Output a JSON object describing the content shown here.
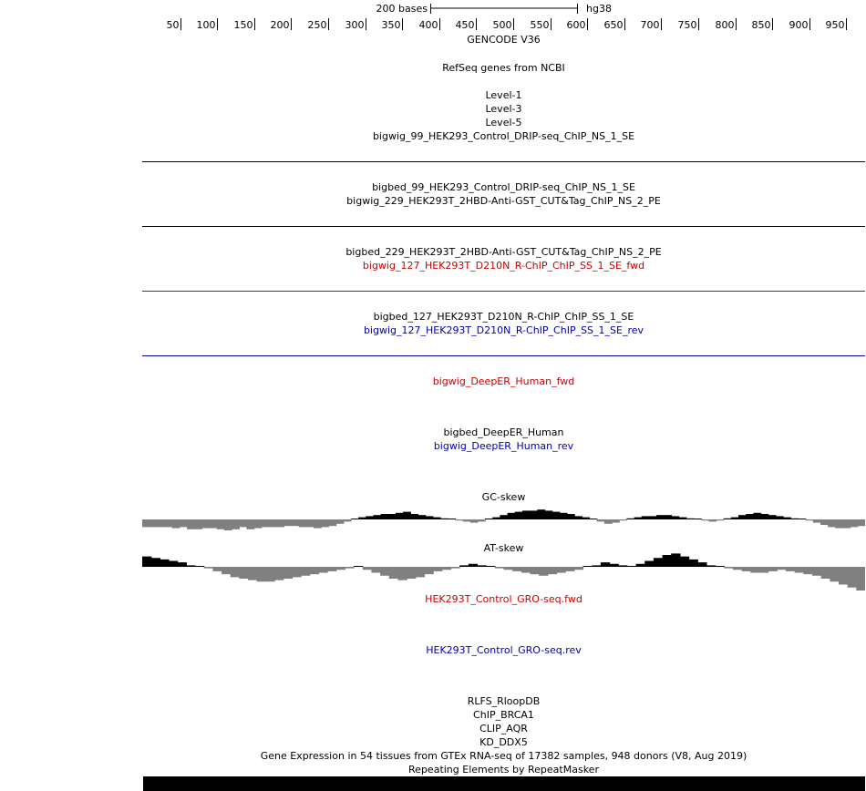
{
  "ruler": {
    "scale_label": "200 bases",
    "assembly": "hg38",
    "ticks": [
      "50",
      "100",
      "150",
      "200",
      "250",
      "300",
      "350",
      "400",
      "450",
      "500",
      "550",
      "600",
      "650",
      "700",
      "750",
      "800",
      "850",
      "900",
      "950"
    ]
  },
  "tracks": {
    "gencode": "GENCODE V36",
    "refseq": "RefSeq genes from NCBI",
    "level1": "Level-1",
    "level3": "Level-3",
    "level5": "Level-5",
    "bigwig_99": "bigwig_99_HEK293_Control_DRIP-seq_ChIP_NS_1_SE",
    "bigbed_99": "bigbed_99_HEK293_Control_DRIP-seq_ChIP_NS_1_SE",
    "bigwig_229": "bigwig_229_HEK293T_2HBD-Anti-GST_CUT&Tag_ChIP_NS_2_PE",
    "bigbed_229": "bigbed_229_HEK293T_2HBD-Anti-GST_CUT&Tag_ChIP_NS_2_PE",
    "bigwig_127_fwd": "bigwig_127_HEK293T_D210N_R-ChIP_ChIP_SS_1_SE_fwd",
    "bigbed_127": "bigbed_127_HEK293T_D210N_R-ChIP_ChIP_SS_1_SE",
    "bigwig_127_rev": "bigwig_127_HEK293T_D210N_R-ChIP_ChIP_SS_1_SE_rev",
    "deeper_fwd": "bigwig_DeepER_Human_fwd",
    "deeper_bed": "bigbed_DeepER_Human",
    "deeper_rev": "bigwig_DeepER_Human_rev",
    "gc_skew": "GC-skew",
    "at_skew": "AT-skew",
    "gro_fwd": "HEK293T_Control_GRO-seq.fwd",
    "gro_rev": "HEK293T_Control_GRO-seq.rev",
    "rlfs": "RLFS_RloopDB",
    "chip_brca1": "ChIP_BRCA1",
    "clip_aqr": "CLIP_AQR",
    "kd_ddx5": "KD_DDX5",
    "gtex": "Gene Expression in 54 tissues from GTEx RNA-seq of 17382 samples, 948 donors (V8, Aug 2019)",
    "repeatmasker": "Repeating Elements by RepeatMasker"
  },
  "colors": {
    "forward_strand": "#cc0000",
    "reverse_strand": "#0000aa",
    "positive_signal": "#000000",
    "negative_signal": "#808080"
  },
  "skew": {
    "gc": [
      -7,
      -7,
      -7,
      -7,
      -8,
      -7,
      -9,
      -9,
      -8,
      -8,
      -9,
      -10,
      -9,
      -7,
      -9,
      -8,
      -7,
      -7,
      -7,
      -6,
      -6,
      -7,
      -7,
      -8,
      -7,
      -6,
      -4,
      -2,
      0,
      2,
      3,
      4,
      5,
      5,
      6,
      7,
      5,
      4,
      3,
      2,
      1,
      0,
      -1,
      -2,
      -3,
      -2,
      0,
      2,
      4,
      6,
      7,
      8,
      8,
      9,
      8,
      7,
      6,
      5,
      3,
      2,
      0,
      -2,
      -4,
      -3,
      -1,
      1,
      2,
      3,
      3,
      4,
      4,
      3,
      2,
      1,
      0,
      -1,
      -2,
      -1,
      1,
      2,
      4,
      5,
      6,
      5,
      4,
      3,
      2,
      1,
      0,
      -1,
      -3,
      -5,
      -7,
      -8,
      -8,
      -7,
      -6
    ],
    "at": [
      7,
      6,
      5,
      4,
      3,
      1,
      0,
      -1,
      -3,
      -5,
      -7,
      -8,
      -9,
      -10,
      -10,
      -9,
      -8,
      -7,
      -6,
      -5,
      -4,
      -3,
      -2,
      -1,
      0,
      -2,
      -4,
      -6,
      -8,
      -9,
      -8,
      -7,
      -5,
      -3,
      -2,
      -1,
      1,
      2,
      1,
      0,
      -1,
      -2,
      -3,
      -4,
      -5,
      -6,
      -5,
      -4,
      -3,
      -2,
      0,
      1,
      3,
      2,
      1,
      0,
      2,
      4,
      6,
      8,
      9,
      7,
      5,
      3,
      1,
      0,
      -1,
      -2,
      -3,
      -4,
      -4,
      -3,
      -2,
      -3,
      -4,
      -5,
      -6,
      -8,
      -10,
      -12,
      -14,
      -16
    ]
  }
}
